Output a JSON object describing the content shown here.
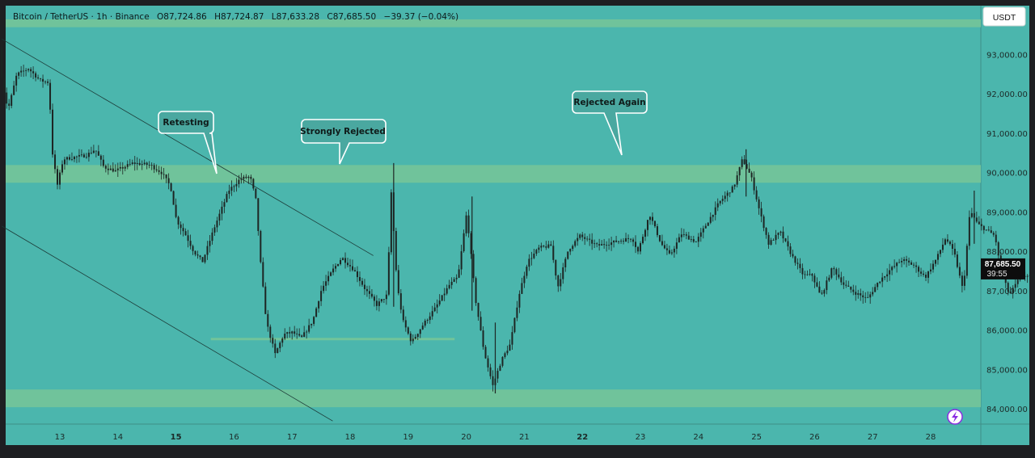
{
  "header": {
    "symbol": "Bitcoin / TetherUS · 1h · Binance",
    "open": "O87,724.86",
    "high": "H87,724.87",
    "low": "L87,633.28",
    "close": "C87,685.50",
    "change": "−39.37 (−0.04%)"
  },
  "currency_button": "USDT",
  "price_tag": {
    "price": "87,685.50",
    "countdown": "39:55"
  },
  "colors": {
    "background": "#4bb6ad",
    "zone": "#72c49a",
    "candle": "#1d2523",
    "axis_bg": "#4bb6ad",
    "callout_fill": "#4aa8a0",
    "callout_stroke": "#ffffff",
    "price_tag_bg": "#0d0d0d",
    "icon_accent": "#8a2be2"
  },
  "callouts": {
    "retesting": "Retesting",
    "strongly_rejected": "Strongly Rejected",
    "rejected_again": "Rejected Again"
  },
  "lightning_icon": "lightning-icon",
  "chart_data": {
    "type": "candlestick",
    "title": "",
    "xlabel": "",
    "ylabel": "",
    "ylim": [
      83600,
      93900
    ],
    "y_ticks": [
      "93,000.00",
      "92,000.00",
      "91,000.00",
      "90,000.00",
      "89,000.00",
      "88,000.00",
      "87,000.00",
      "86,000.00",
      "85,000.00",
      "84,000.00"
    ],
    "y_tick_values": [
      93000,
      92000,
      91000,
      90000,
      89000,
      88000,
      87000,
      86000,
      85000,
      84000
    ],
    "x_ticks": [
      "13",
      "14",
      "15",
      "16",
      "17",
      "18",
      "19",
      "20",
      "21",
      "22",
      "23",
      "24",
      "25",
      "26",
      "27",
      "28"
    ],
    "x_tick_bold": [
      "15",
      "22"
    ],
    "zones": [
      {
        "name": "resistance",
        "from": 89750,
        "to": 90200
      },
      {
        "name": "support",
        "from": 84050,
        "to": 84500
      },
      {
        "name": "top",
        "from": 93700,
        "to": 93900
      }
    ],
    "horizontal_line": {
      "value": 85780,
      "from_day": 15.6,
      "to_day": 19.8
    },
    "trend_lines": [
      {
        "from": [
          12.0,
          93400
        ],
        "to": [
          18.4,
          87900
        ]
      },
      {
        "from": [
          12.0,
          88650
        ],
        "to": [
          17.7,
          83700
        ]
      }
    ],
    "price_path": [
      [
        12.0,
        93200
      ],
      [
        12.05,
        92300
      ],
      [
        12.15,
        91600
      ],
      [
        12.3,
        92500
      ],
      [
        12.5,
        92650
      ],
      [
        12.7,
        92350
      ],
      [
        12.85,
        92300
      ],
      [
        12.92,
        90400
      ],
      [
        13.0,
        89700
      ],
      [
        13.1,
        90350
      ],
      [
        13.5,
        90450
      ],
      [
        13.65,
        90600
      ],
      [
        13.8,
        90150
      ],
      [
        14.0,
        90050
      ],
      [
        14.3,
        90250
      ],
      [
        14.6,
        90200
      ],
      [
        14.8,
        90000
      ],
      [
        14.95,
        89650
      ],
      [
        15.05,
        88800
      ],
      [
        15.2,
        88450
      ],
      [
        15.35,
        88000
      ],
      [
        15.5,
        87750
      ],
      [
        15.7,
        88600
      ],
      [
        15.95,
        89550
      ],
      [
        16.15,
        89850
      ],
      [
        16.32,
        89900
      ],
      [
        16.42,
        89300
      ],
      [
        16.5,
        87700
      ],
      [
        16.6,
        86200
      ],
      [
        16.75,
        85400
      ],
      [
        16.9,
        85900
      ],
      [
        17.05,
        85950
      ],
      [
        17.2,
        85800
      ],
      [
        17.4,
        86250
      ],
      [
        17.55,
        87050
      ],
      [
        17.75,
        87550
      ],
      [
        17.9,
        87850
      ],
      [
        18.1,
        87550
      ],
      [
        18.3,
        87050
      ],
      [
        18.5,
        86650
      ],
      [
        18.68,
        86900
      ],
      [
        18.75,
        89500
      ],
      [
        18.85,
        87150
      ],
      [
        18.95,
        86250
      ],
      [
        19.1,
        85700
      ],
      [
        19.3,
        86150
      ],
      [
        19.5,
        86550
      ],
      [
        19.75,
        87150
      ],
      [
        19.9,
        87350
      ],
      [
        20.05,
        89000
      ],
      [
        20.2,
        86800
      ],
      [
        20.35,
        85450
      ],
      [
        20.5,
        84600
      ],
      [
        20.65,
        85250
      ],
      [
        20.8,
        85650
      ],
      [
        20.95,
        86900
      ],
      [
        21.1,
        87750
      ],
      [
        21.3,
        88100
      ],
      [
        21.5,
        88150
      ],
      [
        21.62,
        87100
      ],
      [
        21.8,
        88050
      ],
      [
        22.0,
        88400
      ],
      [
        22.3,
        88150
      ],
      [
        22.6,
        88250
      ],
      [
        22.9,
        88350
      ],
      [
        23.0,
        88000
      ],
      [
        23.2,
        88950
      ],
      [
        23.4,
        88200
      ],
      [
        23.55,
        87900
      ],
      [
        23.75,
        88450
      ],
      [
        24.0,
        88250
      ],
      [
        24.2,
        88750
      ],
      [
        24.4,
        89250
      ],
      [
        24.65,
        89650
      ],
      [
        24.8,
        90350
      ],
      [
        24.95,
        89900
      ],
      [
        25.1,
        89000
      ],
      [
        25.25,
        88200
      ],
      [
        25.45,
        88500
      ],
      [
        25.65,
        87900
      ],
      [
        25.85,
        87400
      ],
      [
        26.0,
        87400
      ],
      [
        26.15,
        86850
      ],
      [
        26.35,
        87600
      ],
      [
        26.55,
        87150
      ],
      [
        26.75,
        86950
      ],
      [
        26.95,
        86800
      ],
      [
        27.15,
        87250
      ],
      [
        27.35,
        87550
      ],
      [
        27.55,
        87800
      ],
      [
        27.75,
        87650
      ],
      [
        27.95,
        87350
      ],
      [
        28.15,
        87850
      ],
      [
        28.3,
        88350
      ],
      [
        28.45,
        87950
      ],
      [
        28.6,
        87000
      ],
      [
        28.72,
        89050
      ],
      [
        28.85,
        88700
      ],
      [
        29.0,
        88550
      ],
      [
        29.15,
        88400
      ],
      [
        29.25,
        87500
      ],
      [
        29.4,
        86900
      ],
      [
        29.6,
        87400
      ],
      [
        29.8,
        87350
      ],
      [
        30.0,
        87450
      ],
      [
        30.2,
        87550
      ],
      [
        30.4,
        87500
      ],
      [
        30.6,
        87550
      ],
      [
        30.8,
        87650
      ],
      [
        30.95,
        87850
      ],
      [
        31.1,
        87750
      ],
      [
        31.2,
        87685
      ]
    ]
  }
}
